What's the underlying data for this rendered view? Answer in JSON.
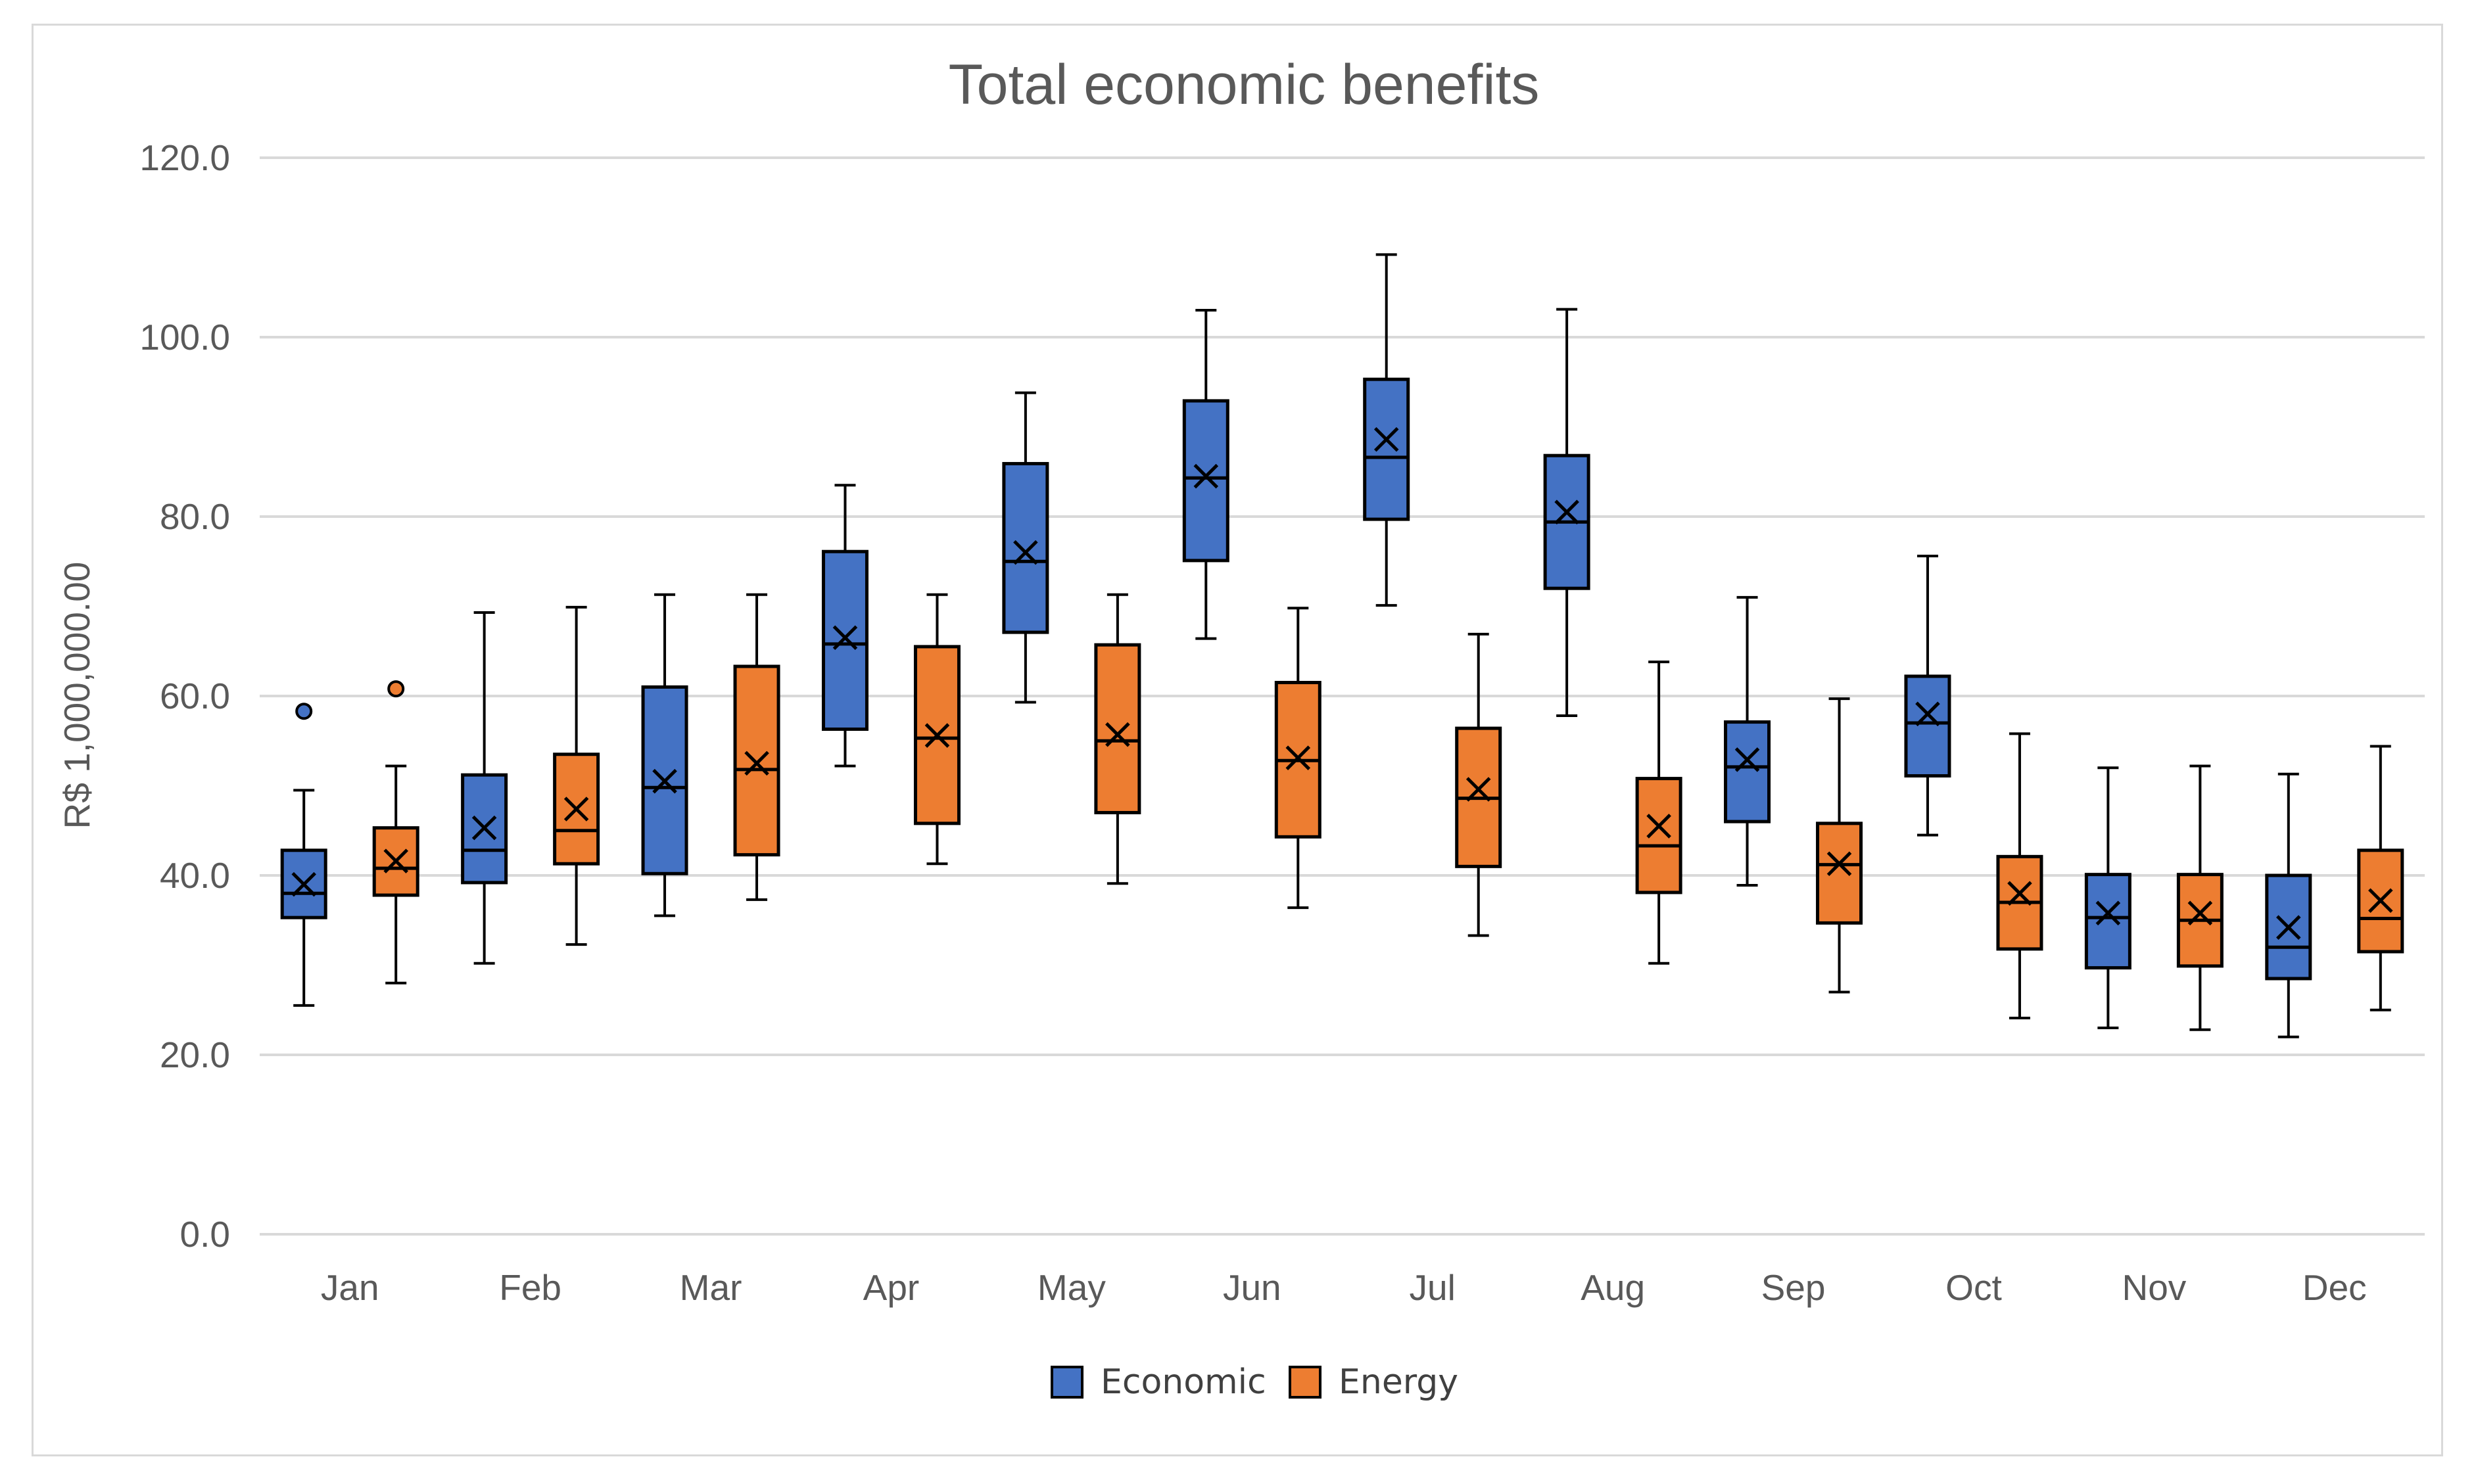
{
  "chart_data": {
    "type": "box",
    "title": "Total economic benefits",
    "xlabel": "",
    "ylabel": "R$ 1,000,000.00",
    "ylim": [
      0,
      120
    ],
    "yticks": [
      0,
      20,
      40,
      60,
      80,
      100,
      120
    ],
    "ytick_labels": [
      "0.0",
      "20.0",
      "40.0",
      "60.0",
      "80.0",
      "100.0",
      "120.0"
    ],
    "categories": [
      "Jan",
      "Feb",
      "Mar",
      "Apr",
      "May",
      "Jun",
      "Jul",
      "Aug",
      "Sep",
      "Oct",
      "Nov",
      "Dec"
    ],
    "grid": true,
    "legend_position": "bottom-center",
    "series": [
      {
        "name": "Economic",
        "color": "#4472C4",
        "boxes": [
          {
            "min": 25.5,
            "q1": 35.3,
            "median": 38.0,
            "q3": 42.8,
            "max": 49.5,
            "mean": 39.0,
            "outliers": [
              58.3
            ]
          },
          {
            "min": 30.2,
            "q1": 39.2,
            "median": 42.8,
            "q3": 51.2,
            "max": 69.3,
            "mean": 45.3,
            "outliers": []
          },
          {
            "min": 35.5,
            "q1": 40.2,
            "median": 49.8,
            "q3": 61.0,
            "max": 71.3,
            "mean": 50.5,
            "outliers": []
          },
          {
            "min": 52.2,
            "q1": 56.3,
            "median": 65.8,
            "q3": 76.1,
            "max": 83.5,
            "mean": 66.5,
            "outliers": []
          },
          {
            "min": 59.3,
            "q1": 67.1,
            "median": 75.0,
            "q3": 85.9,
            "max": 93.8,
            "mean": 76.0,
            "outliers": []
          },
          {
            "min": 66.4,
            "q1": 75.1,
            "median": 84.3,
            "q3": 92.9,
            "max": 103.0,
            "mean": 84.5,
            "outliers": []
          },
          {
            "min": 70.1,
            "q1": 79.7,
            "median": 86.6,
            "q3": 95.3,
            "max": 109.2,
            "mean": 88.6,
            "outliers": []
          },
          {
            "min": 57.8,
            "q1": 72.0,
            "median": 79.4,
            "q3": 86.8,
            "max": 103.1,
            "mean": 80.5,
            "outliers": []
          },
          {
            "min": 38.9,
            "q1": 46.0,
            "median": 52.1,
            "q3": 57.1,
            "max": 71.0,
            "mean": 52.9,
            "outliers": []
          },
          {
            "min": 44.5,
            "q1": 51.1,
            "median": 57.0,
            "q3": 62.2,
            "max": 75.6,
            "mean": 58.0,
            "outliers": []
          },
          {
            "min": 23.0,
            "q1": 29.7,
            "median": 35.3,
            "q3": 40.1,
            "max": 52.0,
            "mean": 35.8,
            "outliers": []
          },
          {
            "min": 22.0,
            "q1": 28.5,
            "median": 32.0,
            "q3": 40.0,
            "max": 51.3,
            "mean": 34.2,
            "outliers": []
          }
        ]
      },
      {
        "name": "Energy",
        "color": "#ED7D31",
        "boxes": [
          {
            "min": 28.0,
            "q1": 37.8,
            "median": 40.8,
            "q3": 45.3,
            "max": 52.2,
            "mean": 41.6,
            "outliers": [
              60.8
            ]
          },
          {
            "min": 32.3,
            "q1": 41.3,
            "median": 45.0,
            "q3": 53.5,
            "max": 69.9,
            "mean": 47.4,
            "outliers": []
          },
          {
            "min": 37.3,
            "q1": 42.3,
            "median": 51.8,
            "q3": 63.3,
            "max": 71.3,
            "mean": 52.5,
            "outliers": []
          },
          {
            "min": 41.3,
            "q1": 45.8,
            "median": 55.3,
            "q3": 65.5,
            "max": 71.3,
            "mean": 55.6,
            "outliers": []
          },
          {
            "min": 39.1,
            "q1": 47.0,
            "median": 55.0,
            "q3": 65.7,
            "max": 71.3,
            "mean": 55.7,
            "outliers": []
          },
          {
            "min": 36.4,
            "q1": 44.3,
            "median": 52.8,
            "q3": 61.5,
            "max": 69.8,
            "mean": 53.1,
            "outliers": []
          },
          {
            "min": 33.3,
            "q1": 41.0,
            "median": 48.6,
            "q3": 56.4,
            "max": 66.9,
            "mean": 49.6,
            "outliers": []
          },
          {
            "min": 30.2,
            "q1": 38.1,
            "median": 43.3,
            "q3": 50.8,
            "max": 63.8,
            "mean": 45.5,
            "outliers": []
          },
          {
            "min": 27.0,
            "q1": 34.7,
            "median": 41.2,
            "q3": 45.8,
            "max": 59.7,
            "mean": 41.3,
            "outliers": []
          },
          {
            "min": 24.1,
            "q1": 31.8,
            "median": 37.0,
            "q3": 42.1,
            "max": 55.8,
            "mean": 38.0,
            "outliers": []
          },
          {
            "min": 22.8,
            "q1": 29.9,
            "median": 35.0,
            "q3": 40.1,
            "max": 52.2,
            "mean": 35.8,
            "outliers": []
          },
          {
            "min": 25.0,
            "q1": 31.5,
            "median": 35.2,
            "q3": 42.8,
            "max": 54.4,
            "mean": 37.2,
            "outliers": []
          }
        ]
      }
    ]
  }
}
